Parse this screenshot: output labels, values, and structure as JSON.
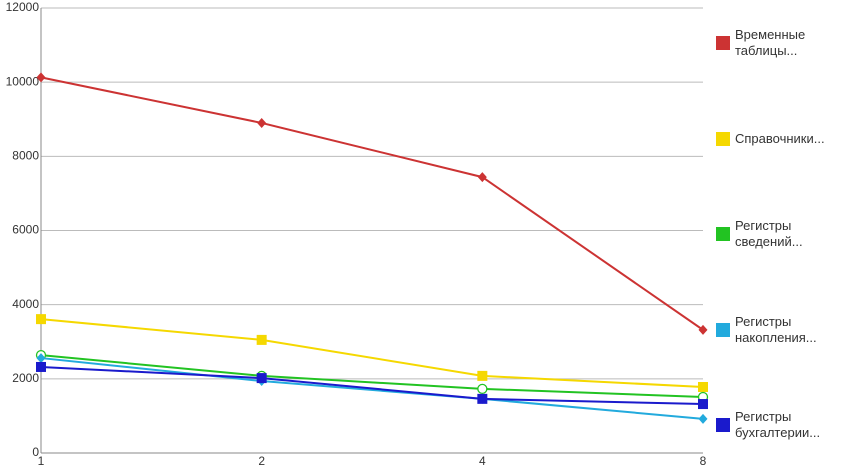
{
  "chart_data": {
    "type": "line",
    "categories": [
      "1",
      "2",
      "4",
      "8"
    ],
    "ylim": [
      0,
      12000
    ],
    "yticks": [
      0,
      2000,
      4000,
      6000,
      8000,
      10000,
      12000
    ],
    "grid": true,
    "legend": "right",
    "series": [
      {
        "name": "Временные таблицы...",
        "color": "#cc3333",
        "marker": "diamond",
        "values": [
          10130,
          8900,
          7440,
          3320
        ]
      },
      {
        "name": "Справочники...",
        "color": "#f5d800",
        "marker": "square",
        "values": [
          3610,
          3050,
          2080,
          1780
        ]
      },
      {
        "name": "Регистры сведений...",
        "color": "#22c322",
        "marker": "circle",
        "values": [
          2640,
          2080,
          1730,
          1510
        ]
      },
      {
        "name": "Регистры накопления...",
        "color": "#22aadd",
        "marker": "diamond",
        "values": [
          2560,
          1940,
          1460,
          920
        ]
      },
      {
        "name": "Регистры бухгалтерии...",
        "color": "#1a1acc",
        "marker": "square",
        "values": [
          2320,
          2020,
          1460,
          1320
        ]
      }
    ]
  }
}
